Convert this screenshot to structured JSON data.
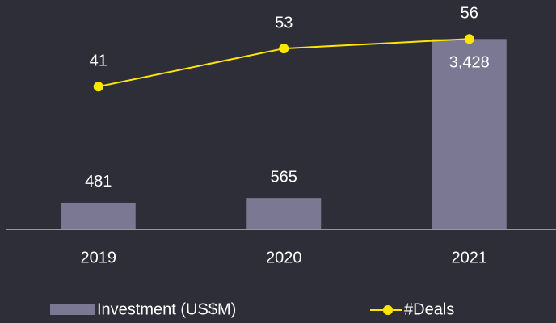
{
  "chart_data": {
    "type": "bar-line",
    "categories": [
      "2019",
      "2020",
      "2021"
    ],
    "series": [
      {
        "name": "Investment (US$M)",
        "type": "bar",
        "color": "#7b7893",
        "values": [
          481,
          565,
          3428
        ],
        "value_labels": [
          "481",
          "565",
          "3,428"
        ]
      },
      {
        "name": "#Deals",
        "type": "line",
        "axis": "y2",
        "color": "#ffe600",
        "values": [
          41,
          53,
          56
        ]
      }
    ],
    "ylim": [
      0,
      4000
    ],
    "y2lim": [
      -4,
      66
    ],
    "grid": false,
    "legend": "bottom"
  }
}
